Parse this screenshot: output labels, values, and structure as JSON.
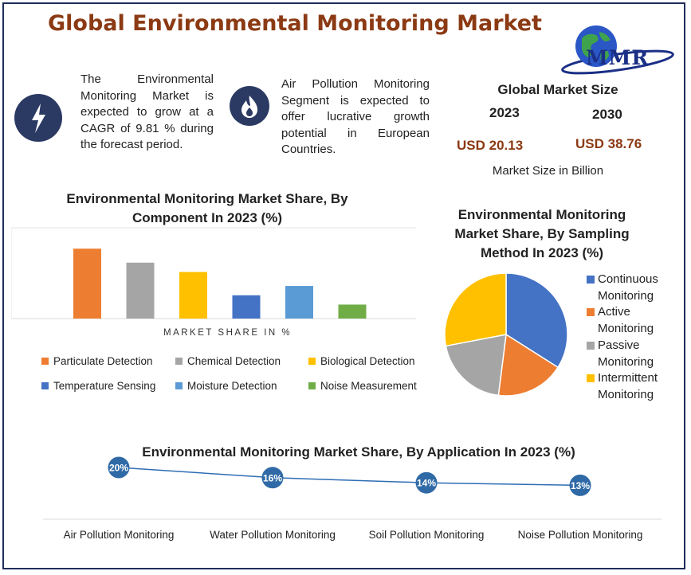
{
  "header": {
    "title": "Global Environmental Monitoring Market",
    "logo_text": "MMR"
  },
  "features": [
    {
      "icon": "lightning-icon",
      "text": "The Environmental Monitoring Market is expected to grow at a CAGR of 9.81 % during the forecast period."
    },
    {
      "icon": "flame-icon",
      "text": "Air Pollution Monitoring Segment is expected to offer lucrative growth potential in European Countries."
    }
  ],
  "market_size": {
    "title": "Global Market Size",
    "year_start": "2023",
    "year_end": "2030",
    "value_start": "USD 20.13",
    "value_end": "USD 38.76",
    "note": "Market Size in Billion",
    "value_color": "#8b3a14"
  },
  "chart_data": [
    {
      "type": "bar",
      "title": "Environmental Monitoring Market Share, By Component In 2023 (%)",
      "xlabel": "MARKET SHARE IN %",
      "ylabel": "",
      "categories": [
        "Particulate Detection",
        "Chemical Detection",
        "Biological Detection",
        "Temperature Sensing",
        "Moisture Detection",
        "Noise Measurement"
      ],
      "values": [
        30,
        24,
        20,
        10,
        14,
        6
      ],
      "colors": [
        "#ed7d31",
        "#a5a5a5",
        "#ffc000",
        "#4472c4",
        "#5b9bd5",
        "#70ad47"
      ],
      "ylim": [
        0,
        40
      ],
      "grid": false,
      "legend": "bottom"
    },
    {
      "type": "pie",
      "title": "Environmental Monitoring Market Share, By Sampling Method In 2023 (%)",
      "categories": [
        "Continuous Monitoring",
        "Active Monitoring",
        "Passive Monitoring",
        "Intermittent Monitoring"
      ],
      "values": [
        34,
        18,
        20,
        28
      ],
      "colors": [
        "#4472c4",
        "#ed7d31",
        "#a5a5a5",
        "#ffc000"
      ],
      "legend": "right"
    },
    {
      "type": "line",
      "title": "Environmental Monitoring Market Share, By Application In 2023 (%)",
      "categories": [
        "Air Pollution Monitoring",
        "Water Pollution Monitoring",
        "Soil Pollution Monitoring",
        "Noise Pollution Monitoring"
      ],
      "values": [
        20,
        16,
        14,
        13
      ],
      "data_labels": [
        "20%",
        "16%",
        "14%",
        "13%"
      ],
      "color": "#2e6db4",
      "grid": false
    }
  ]
}
